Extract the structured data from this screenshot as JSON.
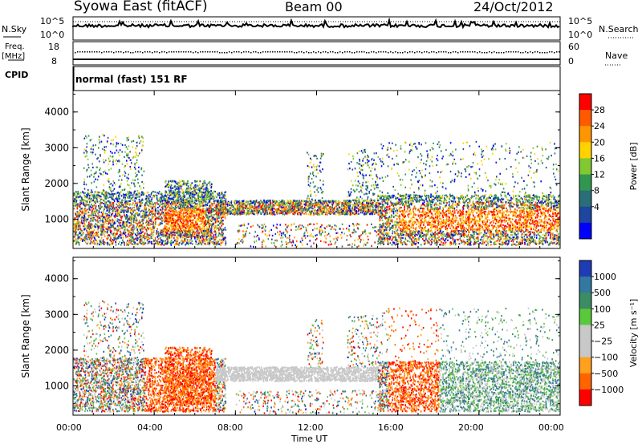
{
  "header": {
    "station": "Syowa East (fitACF)",
    "beam": "Beam 00",
    "date": "24/Oct/2012"
  },
  "summary_panels": {
    "nsky_label": "N.Sky",
    "nsky_ticks": [
      "10^5",
      "10^0"
    ],
    "nsearch_label": "N.Search",
    "nsearch_ticks": [
      "10^5",
      "10^0"
    ],
    "freq_label": "Freq.",
    "freq_unit": "[MHz]",
    "freq_ticks": [
      "18",
      "8"
    ],
    "nave_label": "Nave",
    "nave_ticks": [
      "60",
      "0"
    ],
    "cpid_label": "CPID",
    "cpid_value": "normal (fast) 151 RF"
  },
  "chart_data": [
    {
      "type": "heatmap",
      "name": "power-panel",
      "ylabel": "Slant Range [km]",
      "yticks": [
        "4000",
        "3000",
        "2000",
        "1000"
      ],
      "ytick_values": [
        4000,
        3000,
        2000,
        1000
      ],
      "ylim": [
        180,
        4600
      ],
      "xlim": [
        0,
        24
      ],
      "colorbar_label": "Power [dB]",
      "colorbar_ticks": [
        "28",
        "24",
        "20",
        "16",
        "12",
        "8",
        "4"
      ],
      "colorbar_colors": [
        "#ff0000",
        "#ff5a00",
        "#ff9600",
        "#ffd200",
        "#82c832",
        "#329650",
        "#2a6e78",
        "#1e46a0",
        "#0000ff"
      ]
    },
    {
      "type": "heatmap",
      "name": "velocity-panel",
      "ylabel": "Slant Range [km]",
      "yticks": [
        "4000",
        "3000",
        "2000",
        "1000"
      ],
      "ytick_values": [
        4000,
        3000,
        2000,
        1000
      ],
      "ylim": [
        180,
        4600
      ],
      "xlim": [
        0,
        24
      ],
      "colorbar_label": "Velocity [m s⁻¹]",
      "colorbar_ticks": [
        "1000",
        "500",
        "100",
        "25",
        "−25",
        "−100",
        "−500",
        "−1000"
      ],
      "colorbar_colors": [
        "#1e3cb4",
        "#3278a0",
        "#3c8c64",
        "#5ac83c",
        "#c8c8c8",
        "#c8c8c8",
        "#ffa01e",
        "#ff6400",
        "#ff0000"
      ]
    }
  ],
  "xaxis": {
    "label": "Time UT",
    "ticks": [
      "00:00",
      "04:00",
      "08:00",
      "12:00",
      "16:00",
      "20:00",
      "00:00"
    ],
    "tick_hours": [
      0,
      4,
      8,
      12,
      16,
      20,
      24
    ]
  }
}
